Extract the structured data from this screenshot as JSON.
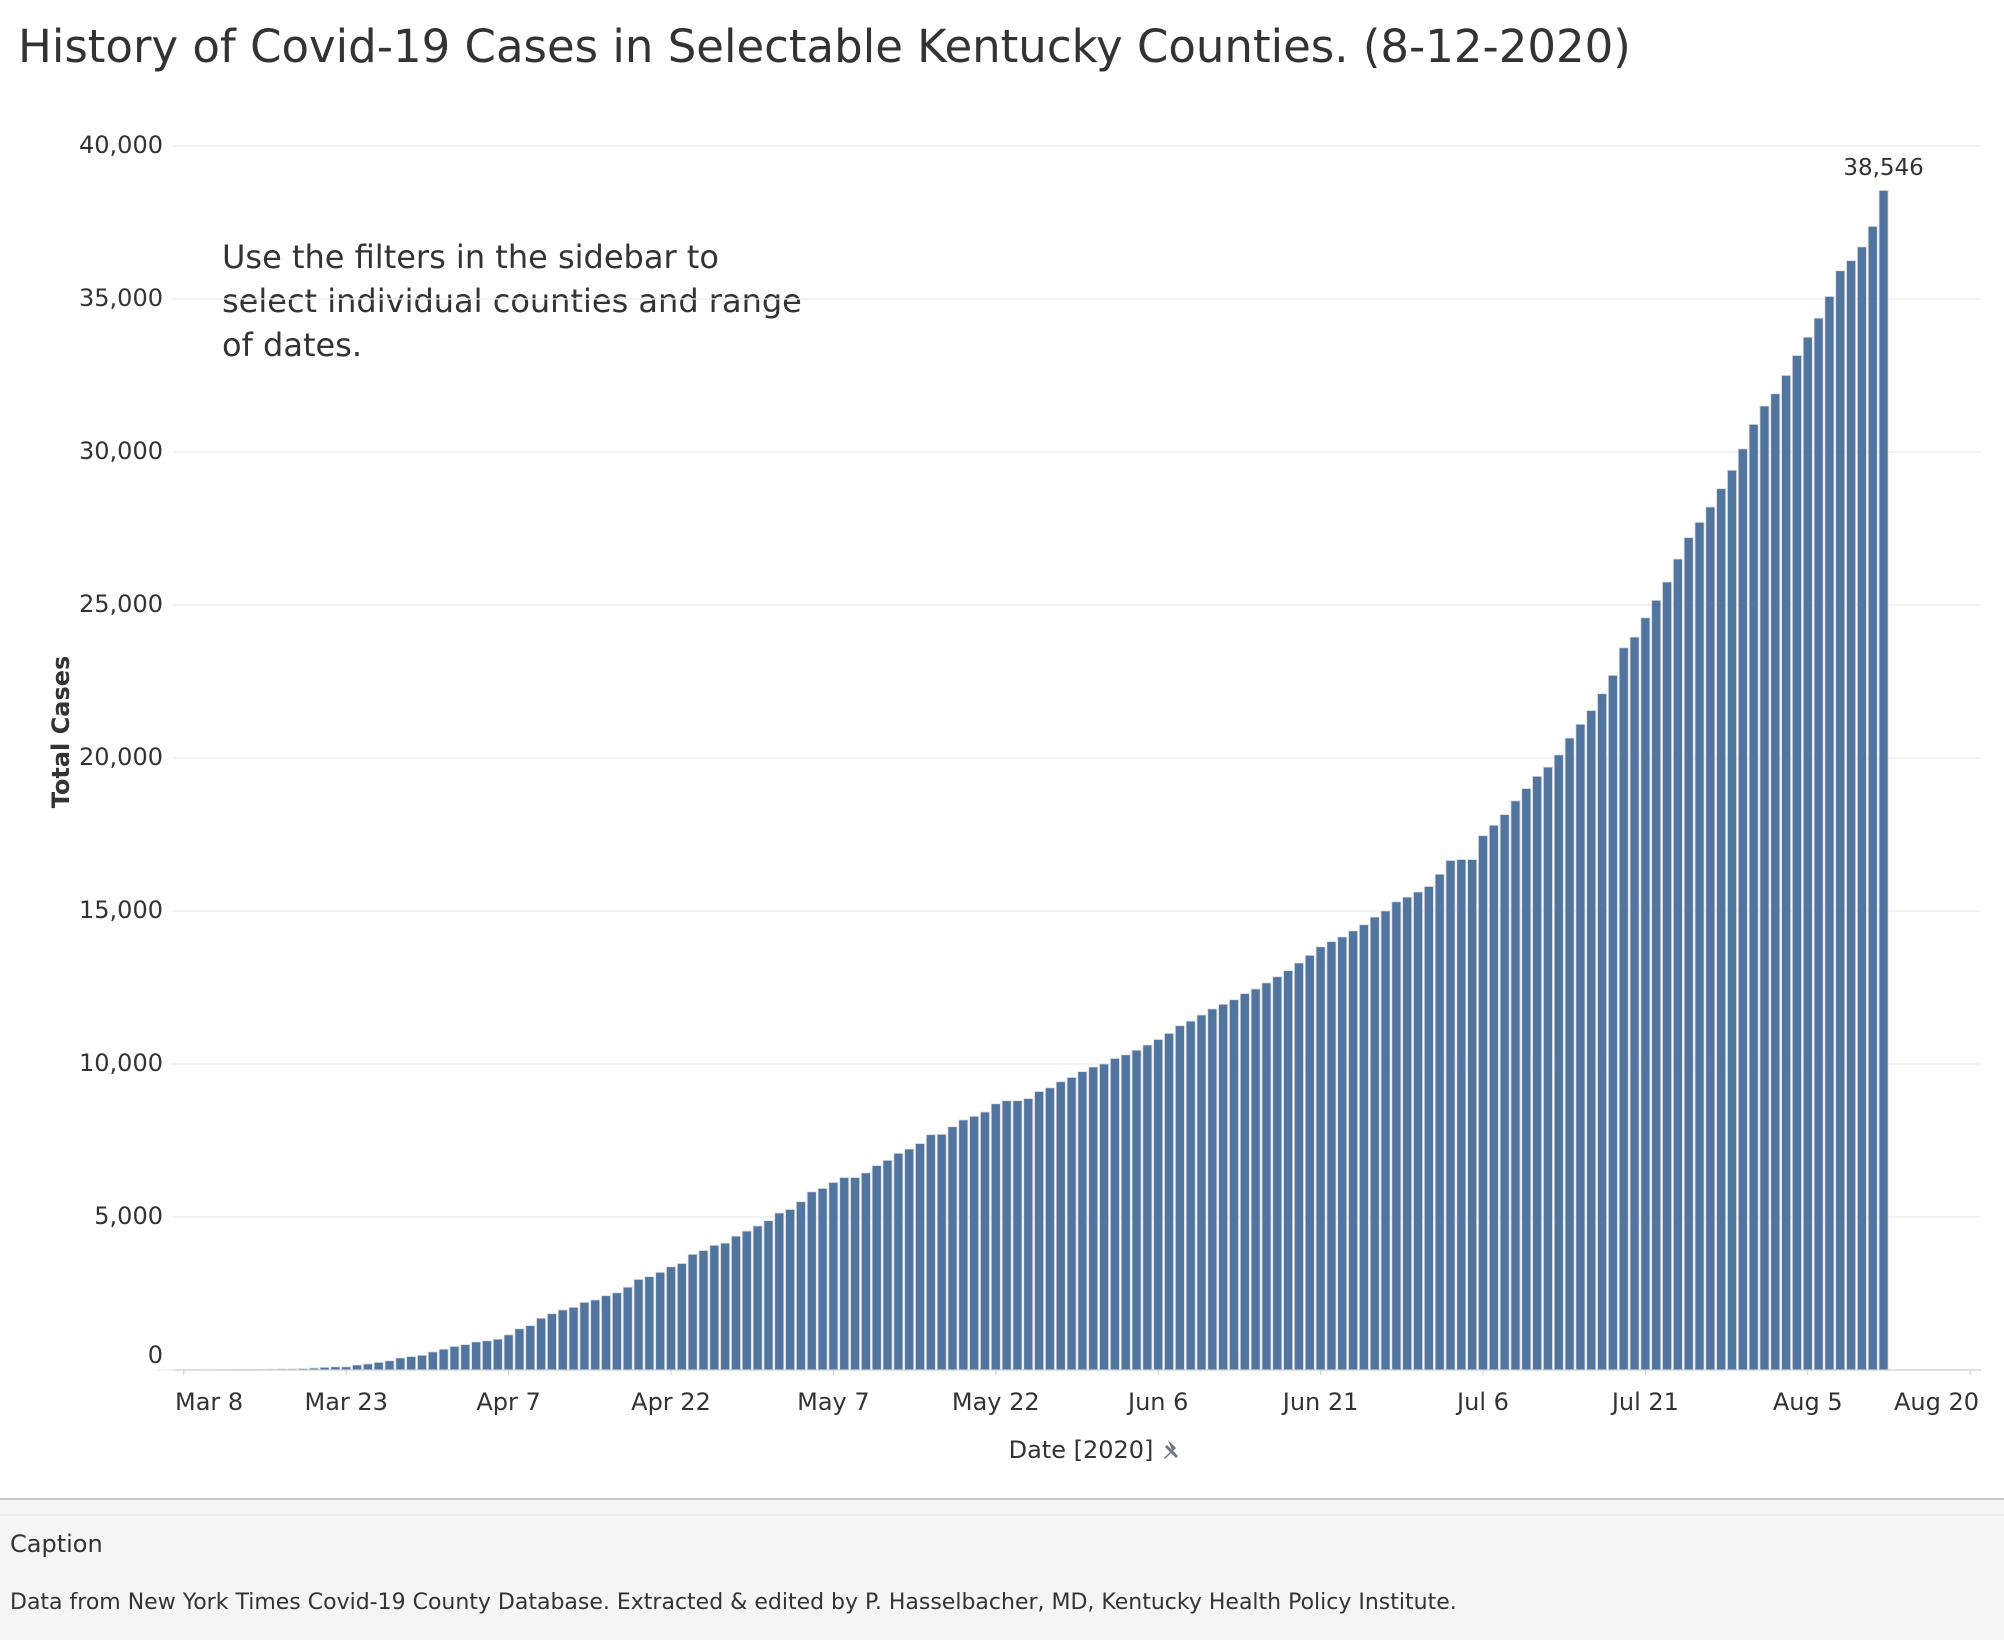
{
  "chart_data": {
    "type": "bar",
    "title": "History of Covid-19 Cases in Selectable Kentucky Counties. (8-12-2020)",
    "annotation": "Use the filters in the sidebar to select individual counties and range of dates.",
    "x_label": "Date [2020]",
    "y_label": "Total Cases",
    "caption_title": "Caption",
    "caption": "Data from New York Times Covid-19 County Database.  Extracted & edited by P. Hasselbacher, MD,  Kentucky Health Policy Institute.",
    "color": "#5275a0",
    "grid": true,
    "x": [
      "2020-03-06",
      "2020-03-07",
      "2020-03-08",
      "2020-03-09",
      "2020-03-10",
      "2020-03-11",
      "2020-03-12",
      "2020-03-13",
      "2020-03-14",
      "2020-03-15",
      "2020-03-16",
      "2020-03-17",
      "2020-03-18",
      "2020-03-19",
      "2020-03-20",
      "2020-03-21",
      "2020-03-22",
      "2020-03-23",
      "2020-03-24",
      "2020-03-25",
      "2020-03-26",
      "2020-03-27",
      "2020-03-28",
      "2020-03-29",
      "2020-03-30",
      "2020-03-31",
      "2020-04-01",
      "2020-04-02",
      "2020-04-03",
      "2020-04-04",
      "2020-04-05",
      "2020-04-06",
      "2020-04-07",
      "2020-04-08",
      "2020-04-09",
      "2020-04-10",
      "2020-04-11",
      "2020-04-12",
      "2020-04-13",
      "2020-04-14",
      "2020-04-15",
      "2020-04-16",
      "2020-04-17",
      "2020-04-18",
      "2020-04-19",
      "2020-04-20",
      "2020-04-21",
      "2020-04-22",
      "2020-04-23",
      "2020-04-24",
      "2020-04-25",
      "2020-04-26",
      "2020-04-27",
      "2020-04-28",
      "2020-04-29",
      "2020-04-30",
      "2020-05-01",
      "2020-05-02",
      "2020-05-03",
      "2020-05-04",
      "2020-05-05",
      "2020-05-06",
      "2020-05-07",
      "2020-05-08",
      "2020-05-09",
      "2020-05-10",
      "2020-05-11",
      "2020-05-12",
      "2020-05-13",
      "2020-05-14",
      "2020-05-15",
      "2020-05-16",
      "2020-05-17",
      "2020-05-18",
      "2020-05-19",
      "2020-05-20",
      "2020-05-21",
      "2020-05-22",
      "2020-05-23",
      "2020-05-24",
      "2020-05-25",
      "2020-05-26",
      "2020-05-27",
      "2020-05-28",
      "2020-05-29",
      "2020-05-30",
      "2020-05-31",
      "2020-06-01",
      "2020-06-02",
      "2020-06-03",
      "2020-06-04",
      "2020-06-05",
      "2020-06-06",
      "2020-06-07",
      "2020-06-08",
      "2020-06-09",
      "2020-06-10",
      "2020-06-11",
      "2020-06-12",
      "2020-06-13",
      "2020-06-14",
      "2020-06-15",
      "2020-06-16",
      "2020-06-17",
      "2020-06-18",
      "2020-06-19",
      "2020-06-20",
      "2020-06-21",
      "2020-06-22",
      "2020-06-23",
      "2020-06-24",
      "2020-06-25",
      "2020-06-26",
      "2020-06-27",
      "2020-06-28",
      "2020-06-29",
      "2020-06-30",
      "2020-07-01",
      "2020-07-02",
      "2020-07-03",
      "2020-07-04",
      "2020-07-05",
      "2020-07-06",
      "2020-07-07",
      "2020-07-08",
      "2020-07-09",
      "2020-07-10",
      "2020-07-11",
      "2020-07-12",
      "2020-07-13",
      "2020-07-14",
      "2020-07-15",
      "2020-07-16",
      "2020-07-17",
      "2020-07-18",
      "2020-07-19",
      "2020-07-20",
      "2020-07-21",
      "2020-07-22",
      "2020-07-23",
      "2020-07-24",
      "2020-07-25",
      "2020-07-26",
      "2020-07-27",
      "2020-07-28",
      "2020-07-29",
      "2020-07-30",
      "2020-07-31",
      "2020-08-01",
      "2020-08-02",
      "2020-08-03",
      "2020-08-04",
      "2020-08-05",
      "2020-08-06",
      "2020-08-07",
      "2020-08-08",
      "2020-08-09",
      "2020-08-10",
      "2020-08-11",
      "2020-08-12"
    ],
    "values": [
      1,
      1,
      4,
      4,
      6,
      8,
      10,
      14,
      20,
      21,
      26,
      35,
      37,
      47,
      63,
      87,
      103,
      104,
      163,
      198,
      248,
      302,
      394,
      439,
      480,
      591,
      680,
      770,
      831,
      917,
      955,
      1008,
      1149,
      1346,
      1452,
      1693,
      1840,
      1963,
      2048,
      2210,
      2291,
      2429,
      2522,
      2707,
      2960,
      3050,
      3192,
      3373,
      3481,
      3779,
      3905,
      4074,
      4146,
      4375,
      4539,
      4708,
      4879,
      5130,
      5245,
      5500,
      5822,
      5934,
      6128,
      6290,
      6290,
      6440,
      6680,
      6850,
      7080,
      7220,
      7400,
      7690,
      7700,
      7950,
      8170,
      8290,
      8430,
      8700,
      8800,
      8800,
      8870,
      9100,
      9220,
      9420,
      9560,
      9750,
      9900,
      10000,
      10180,
      10300,
      10450,
      10620,
      10800,
      11000,
      11250,
      11400,
      11600,
      11800,
      11950,
      12100,
      12300,
      12450,
      12650,
      12850,
      13050,
      13300,
      13550,
      13830,
      14000,
      14150,
      14350,
      14550,
      14800,
      15000,
      15300,
      15450,
      15620,
      15800,
      16200,
      16650,
      16680,
      16680,
      17460,
      17800,
      18150,
      18600,
      19000,
      19400,
      19700,
      20100,
      20650,
      21100,
      21550,
      22100,
      22700,
      23600,
      23950,
      24580,
      25150,
      25750,
      26500,
      27200,
      27700,
      28200,
      28800,
      29400,
      30100,
      30900,
      31500,
      31900,
      32500,
      33150,
      33750,
      34370,
      35080,
      35920,
      36250,
      36700,
      37370,
      38546
    ],
    "value_labels": [
      null,
      null,
      null,
      null,
      null,
      null,
      null,
      null,
      null,
      null,
      null,
      null,
      null,
      null,
      null,
      null,
      null,
      null,
      null,
      null,
      null,
      null,
      null,
      null,
      null,
      null,
      null,
      null,
      null,
      null,
      null,
      null,
      null,
      null,
      null,
      null,
      null,
      null,
      null,
      null,
      null,
      null,
      null,
      null,
      null,
      null,
      null,
      null,
      null,
      null,
      null,
      null,
      null,
      null,
      null,
      null,
      null,
      null,
      null,
      null,
      null,
      null,
      null,
      null,
      null,
      null,
      null,
      null,
      null,
      null,
      null,
      null,
      null,
      null,
      null,
      null,
      null,
      null,
      null,
      null,
      null,
      null,
      null,
      null,
      null,
      null,
      null,
      null,
      null,
      null,
      null,
      null,
      null,
      null,
      null,
      null,
      null,
      null,
      null,
      null,
      null,
      null,
      null,
      null,
      null,
      null,
      null,
      null,
      null,
      null,
      null,
      null,
      null,
      null,
      null,
      null,
      null,
      null,
      null,
      null,
      null,
      null,
      null,
      null,
      null,
      null,
      null,
      null,
      null,
      null,
      null,
      null,
      null,
      null,
      null,
      null,
      null,
      null,
      null,
      null,
      null,
      null,
      null,
      null,
      null,
      null,
      null,
      null,
      null,
      null,
      null,
      null,
      null,
      null,
      null,
      null,
      null,
      null,
      null,
      "38,546"
    ],
    "xlim": [
      "2020-03-07",
      "2020-08-21"
    ],
    "xticks": [
      {
        "value": "2020-03-08",
        "label": "Mar 8"
      },
      {
        "value": "2020-03-23",
        "label": "Mar 23"
      },
      {
        "value": "2020-04-07",
        "label": "Apr 7"
      },
      {
        "value": "2020-04-22",
        "label": "Apr 22"
      },
      {
        "value": "2020-05-07",
        "label": "May 7"
      },
      {
        "value": "2020-05-22",
        "label": "May 22"
      },
      {
        "value": "2020-06-06",
        "label": "Jun 6"
      },
      {
        "value": "2020-06-21",
        "label": "Jun 21"
      },
      {
        "value": "2020-07-06",
        "label": "Jul 6"
      },
      {
        "value": "2020-07-21",
        "label": "Jul 21"
      },
      {
        "value": "2020-08-05",
        "label": "Aug 5"
      },
      {
        "value": "2020-08-20",
        "label": "Aug 20"
      }
    ],
    "ylim": [
      0,
      41500
    ],
    "yticks": [
      0,
      {
        "value": 5000,
        "label": "5,000"
      },
      {
        "value": 10000,
        "label": "10,000"
      },
      {
        "value": 15000,
        "label": "15,000"
      },
      {
        "value": 20000,
        "label": "20,000"
      },
      {
        "value": 25000,
        "label": "25,000"
      },
      {
        "value": 30000,
        "label": "30,000"
      },
      {
        "value": 35000,
        "label": "35,000"
      },
      {
        "value": 40000,
        "label": "40,000"
      }
    ]
  }
}
